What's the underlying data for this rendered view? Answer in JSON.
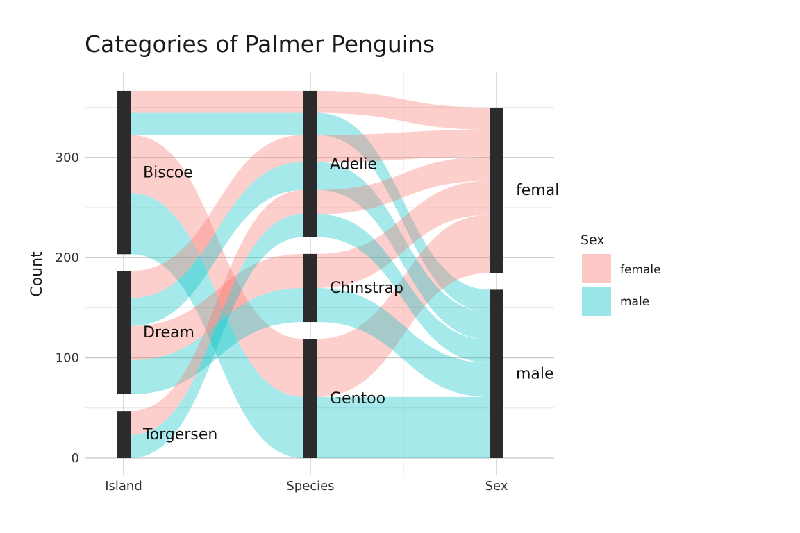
{
  "chart_data": {
    "type": "alluvial",
    "title": "Categories of Palmer Penguins",
    "ylabel": "Count",
    "ylim": [
      0,
      368
    ],
    "yticks": [
      "0",
      "100",
      "200",
      "300"
    ],
    "axes": [
      "Island",
      "Species",
      "Sex"
    ],
    "strata": {
      "Island": [
        "Biscoe",
        "Dream",
        "Torgersen"
      ],
      "Species": [
        "Adelie",
        "Chinstrap",
        "Gentoo"
      ],
      "Sex": [
        "female",
        "male"
      ]
    },
    "stratum_labels": {
      "Island": [
        "Biscoe",
        "Dream",
        "Torgersen"
      ],
      "Species": [
        "Adelie",
        "Chinstrap",
        "Gentoo"
      ],
      "Sex": [
        "femal",
        "male"
      ]
    },
    "flows": [
      {
        "island": "Biscoe",
        "species": "Adelie",
        "sex": "female",
        "n": 22
      },
      {
        "island": "Biscoe",
        "species": "Adelie",
        "sex": "male",
        "n": 22
      },
      {
        "island": "Biscoe",
        "species": "Gentoo",
        "sex": "female",
        "n": 58
      },
      {
        "island": "Biscoe",
        "species": "Gentoo",
        "sex": "male",
        "n": 61
      },
      {
        "island": "Dream",
        "species": "Adelie",
        "sex": "female",
        "n": 27
      },
      {
        "island": "Dream",
        "species": "Adelie",
        "sex": "male",
        "n": 28
      },
      {
        "island": "Dream",
        "species": "Chinstrap",
        "sex": "female",
        "n": 34
      },
      {
        "island": "Dream",
        "species": "Chinstrap",
        "sex": "male",
        "n": 34
      },
      {
        "island": "Torgersen",
        "species": "Adelie",
        "sex": "female",
        "n": 24
      },
      {
        "island": "Torgersen",
        "species": "Adelie",
        "sex": "male",
        "n": 23
      }
    ],
    "legend": {
      "title": "Sex",
      "position": "right",
      "items": [
        {
          "label": "female",
          "color": "#F8766D"
        },
        {
          "label": "male",
          "color": "#00BFC4"
        }
      ]
    },
    "colors": {
      "female": "#F8766D",
      "male": "#00BFC4",
      "stratum": "#2b2b2b",
      "grid_major": "#c8c8c8",
      "grid_minor": "#e6e6e6"
    },
    "grid": true
  }
}
